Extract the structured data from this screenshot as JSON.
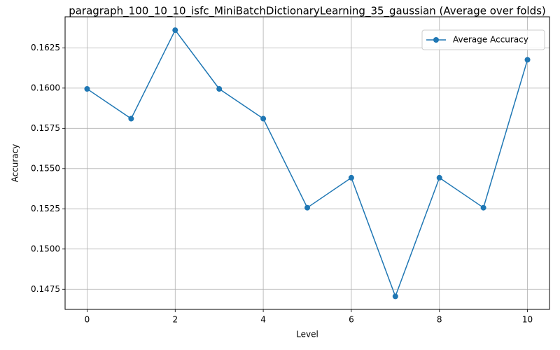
{
  "chart_data": {
    "type": "line",
    "title": "paragraph_100_10_10_isfc_MiniBatchDictionaryLearning_35_gaussian (Average over folds)",
    "xlabel": "Level",
    "ylabel": "Accuracy",
    "x": [
      0,
      1,
      2,
      3,
      4,
      5,
      6,
      7,
      8,
      9,
      10
    ],
    "series": [
      {
        "name": "Average Accuracy",
        "values": [
          0.15995,
          0.1581,
          0.1636,
          0.15995,
          0.1581,
          0.15257,
          0.15443,
          0.14706,
          0.15443,
          0.15257,
          0.16176
        ],
        "color": "#1f77b4",
        "marker": "circle"
      }
    ],
    "xlim": [
      -0.5,
      10.5
    ],
    "ylim": [
      0.14625,
      0.16443
    ],
    "xticks": [
      0,
      2,
      4,
      6,
      8,
      10
    ],
    "xtick_labels": [
      "0",
      "2",
      "4",
      "6",
      "8",
      "10"
    ],
    "yticks": [
      0.1475,
      0.15,
      0.1525,
      0.155,
      0.1575,
      0.16,
      0.1625
    ],
    "ytick_labels": [
      "0.1475",
      "0.1500",
      "0.1525",
      "0.1550",
      "0.1575",
      "0.1600",
      "0.1625"
    ],
    "grid": true,
    "legend_position": "top-right"
  }
}
